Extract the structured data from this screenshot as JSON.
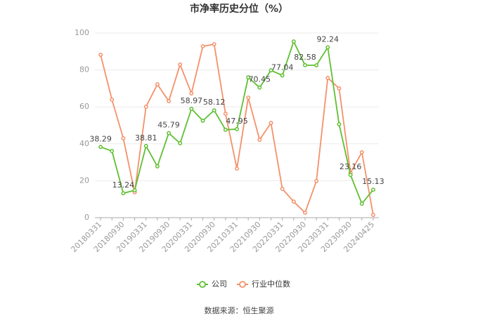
{
  "chart_data": {
    "type": "line",
    "title": "市净率历史分位（%）",
    "categories": [
      "20180331",
      null,
      "20180930",
      null,
      "20190331",
      null,
      "20190930",
      null,
      "20200331",
      null,
      "20200930",
      null,
      "20210331",
      null,
      "20210930",
      null,
      "20220331",
      null,
      "20220930",
      null,
      "20230331",
      null,
      "20230930",
      null,
      "20240425"
    ],
    "series": [
      {
        "name": "公司",
        "color": "#5fbf32",
        "values": [
          38.29,
          36.1,
          13.24,
          14.8,
          38.81,
          27.8,
          45.79,
          40.3,
          58.97,
          52.5,
          58.12,
          47.6,
          47.95,
          76.0,
          70.45,
          79.8,
          77.04,
          95.4,
          82.58,
          82.5,
          92.24,
          50.6,
          23.16,
          7.6,
          15.13
        ],
        "value_labels": [
          "38.29",
          null,
          "13.24",
          null,
          "38.81",
          null,
          "45.79",
          null,
          "58.97",
          null,
          "58.12",
          null,
          "47.95",
          null,
          "70.45",
          null,
          "77.04",
          null,
          "82.58",
          null,
          "92.24",
          null,
          "23.16",
          null,
          "15.13"
        ]
      },
      {
        "name": "行业中位数",
        "color": "#f4916a",
        "values": [
          88.2,
          63.9,
          43.0,
          13.7,
          60.1,
          72.2,
          63.1,
          82.9,
          67.3,
          92.8,
          93.9,
          56.3,
          26.6,
          65.0,
          42.2,
          51.3,
          15.6,
          8.7,
          2.7,
          19.8,
          75.7,
          70.0,
          24.3,
          35.4,
          1.5
        ]
      }
    ],
    "ylim": [
      0,
      100
    ],
    "yticks": [
      0,
      20,
      40,
      60,
      80,
      100
    ],
    "grid": true,
    "source": "数据来源：恒生聚源"
  }
}
